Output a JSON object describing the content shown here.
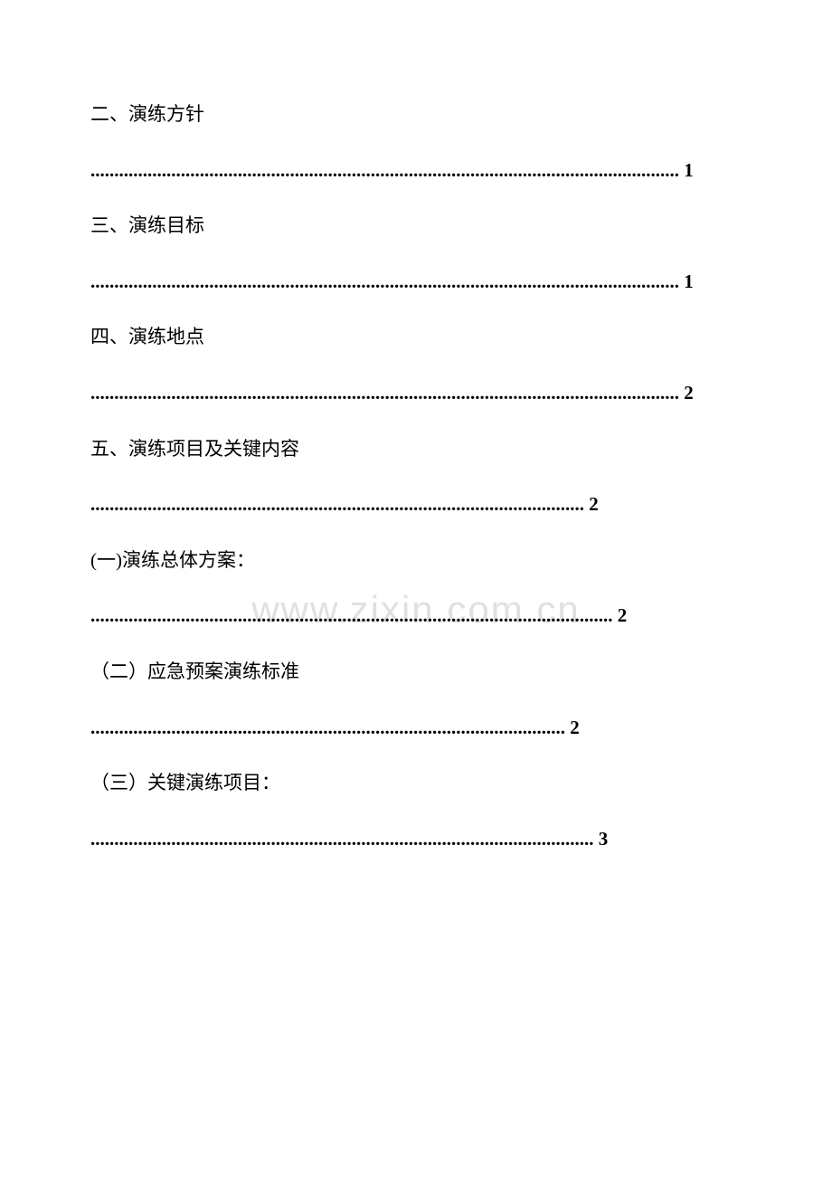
{
  "watermark": "www.zixin.com.cn",
  "toc": [
    {
      "title": "二、演练方针",
      "page": "1",
      "dots": "............................................................................................................................"
    },
    {
      "title": "三、演练目标",
      "page": "1",
      "dots": "............................................................................................................................"
    },
    {
      "title": "四、演练地点",
      "page": "2",
      "dots": "............................................................................................................................"
    },
    {
      "title": "五、演练项目及关键内容",
      "page": "2",
      "dots": "........................................................................................................"
    },
    {
      "title": "(一)演练总体方案：",
      "page": "2",
      "dots": ".............................................................................................................."
    },
    {
      "title": "（二）应急预案演练标准",
      "page": "2",
      "dots": "...................................................................................................."
    },
    {
      "title": "（三）关键演练项目：",
      "page": "3",
      "dots": ".........................................................................................................."
    }
  ]
}
